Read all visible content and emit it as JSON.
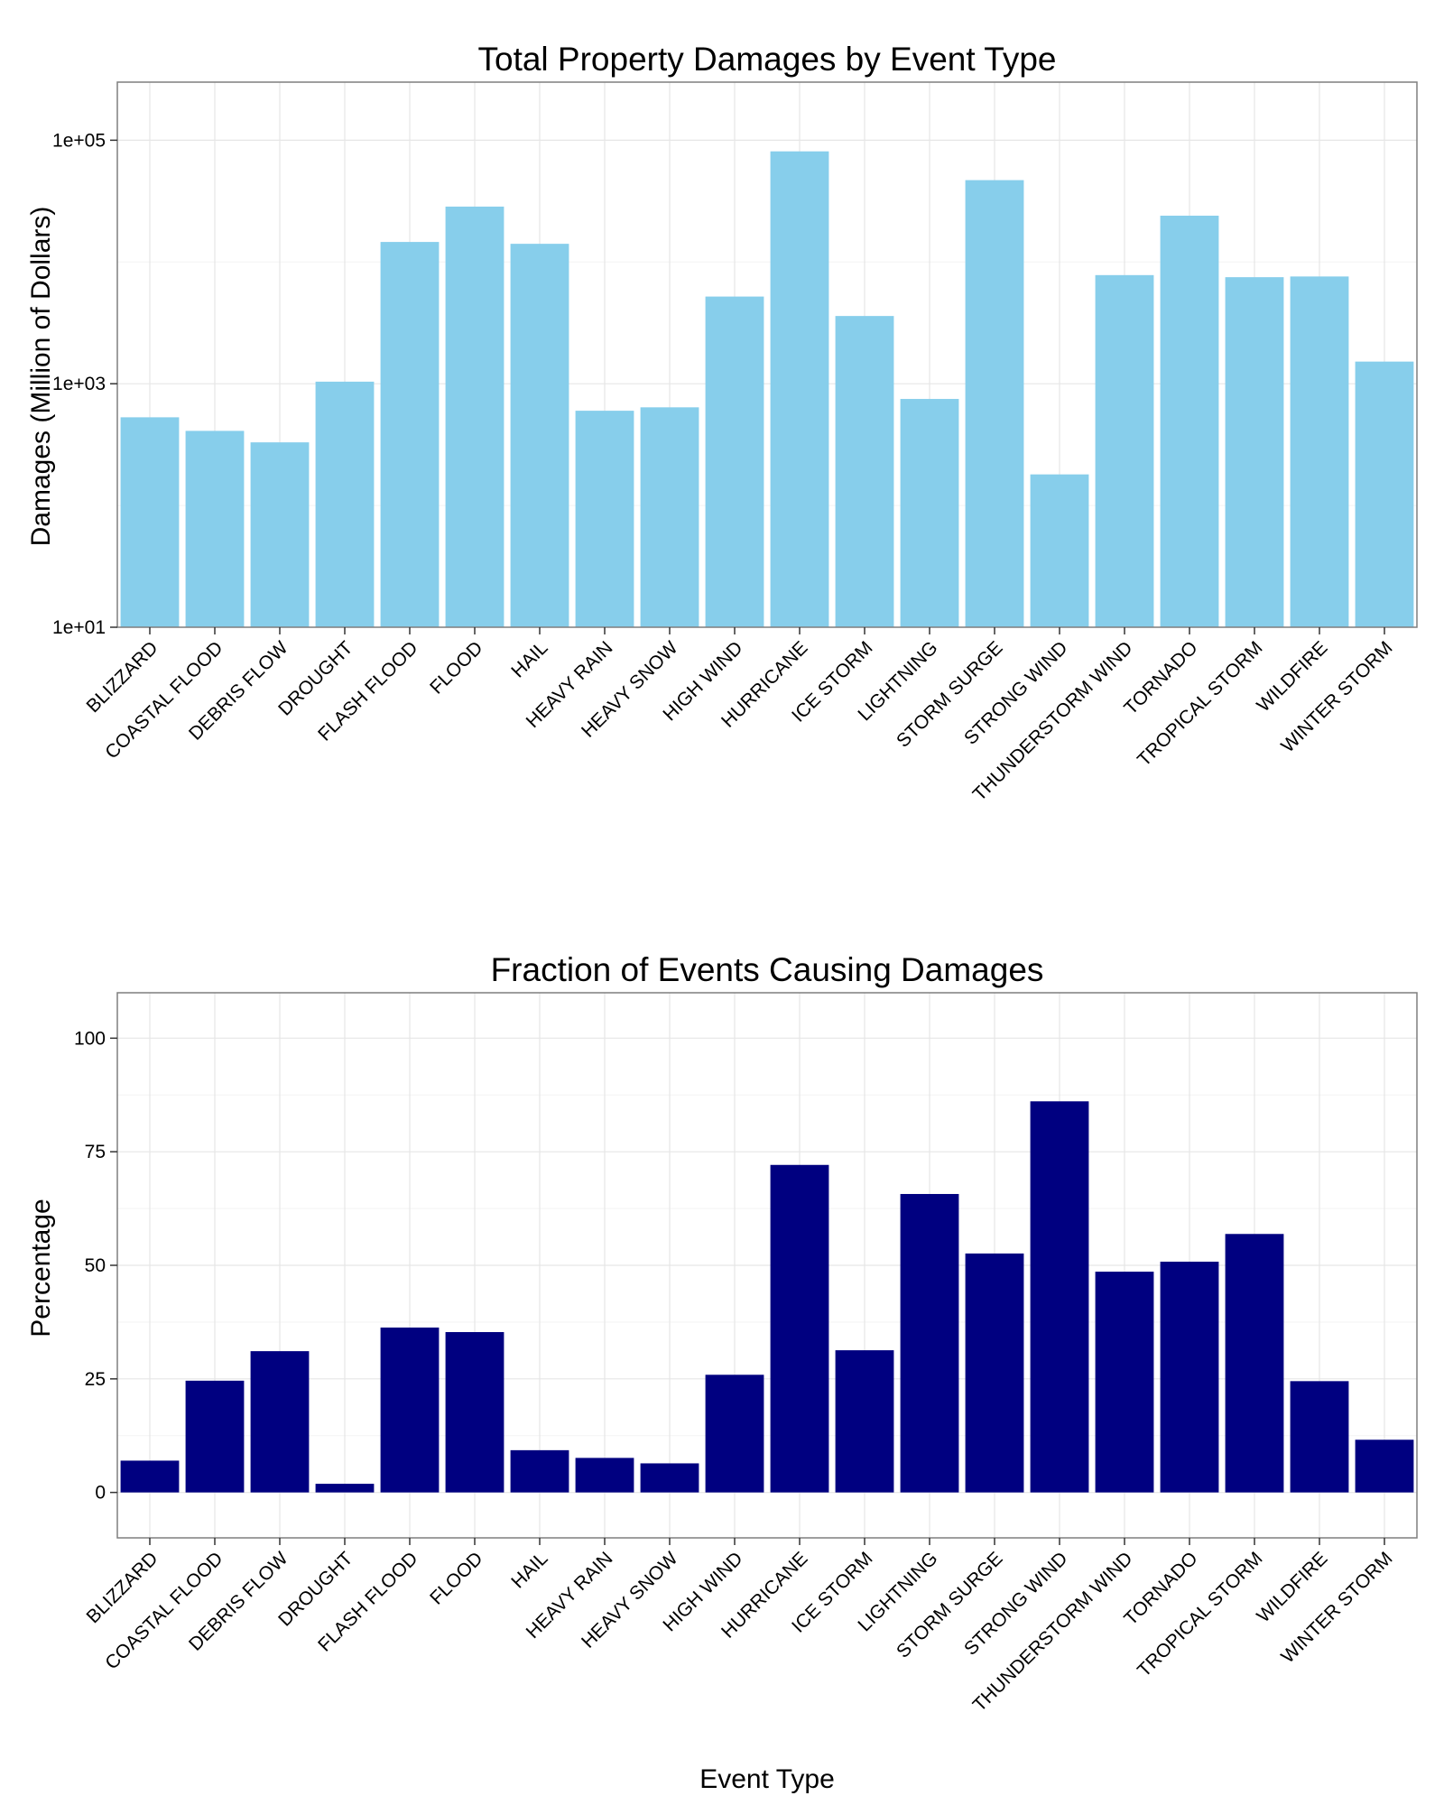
{
  "chart_data": [
    {
      "type": "bar",
      "title": "Total Property Damages by Event Type",
      "xlabel": "",
      "ylabel": "Damages (Million of Dollars)",
      "y_scale": "log10",
      "ylim": [
        10,
        300000
      ],
      "yticks": [
        10,
        1000,
        100000
      ],
      "ytick_labels": [
        "1e+01",
        "1e+03",
        "1e+05"
      ],
      "grid": true,
      "bar_color": "#87CEEB",
      "categories": [
        "BLIZZARD",
        "COASTAL FLOOD",
        "DEBRIS FLOW",
        "DROUGHT",
        "FLASH FLOOD",
        "FLOOD",
        "HAIL",
        "HEAVY RAIN",
        "HEAVY SNOW",
        "HIGH WIND",
        "HURRICANE",
        "ICE STORM",
        "LIGHTNING",
        "STORM SURGE",
        "STRONG WIND",
        "THUNDERSTORM WIND",
        "TORNADO",
        "TROPICAL STORM",
        "WILDFIRE",
        "WINTER STORM"
      ],
      "values": [
        530,
        410,
        330,
        1040,
        14600,
        28500,
        14100,
        600,
        640,
        5200,
        81000,
        3600,
        750,
        47000,
        180,
        7800,
        24000,
        7500,
        7600,
        1520
      ]
    },
    {
      "type": "bar",
      "title": "Fraction of Events Causing Damages",
      "xlabel": "Event Type",
      "ylabel": "Percentage",
      "y_scale": "linear",
      "ylim": [
        -10,
        110
      ],
      "yticks": [
        0,
        25,
        50,
        75,
        100
      ],
      "ytick_labels": [
        "0",
        "25",
        "50",
        "75",
        "100"
      ],
      "grid": true,
      "bar_color": "#000080",
      "categories": [
        "BLIZZARD",
        "COASTAL FLOOD",
        "DEBRIS FLOW",
        "DROUGHT",
        "FLASH FLOOD",
        "FLOOD",
        "HAIL",
        "HEAVY RAIN",
        "HEAVY SNOW",
        "HIGH WIND",
        "HURRICANE",
        "ICE STORM",
        "LIGHTNING",
        "STORM SURGE",
        "STRONG WIND",
        "THUNDERSTORM WIND",
        "TORNADO",
        "TROPICAL STORM",
        "WILDFIRE",
        "WINTER STORM"
      ],
      "values": [
        7,
        24.6,
        31.1,
        1.9,
        36.3,
        35.3,
        9.3,
        7.6,
        6.4,
        25.9,
        72.1,
        31.3,
        65.7,
        52.6,
        86.1,
        48.6,
        50.8,
        56.9,
        24.5,
        11.6
      ]
    }
  ]
}
